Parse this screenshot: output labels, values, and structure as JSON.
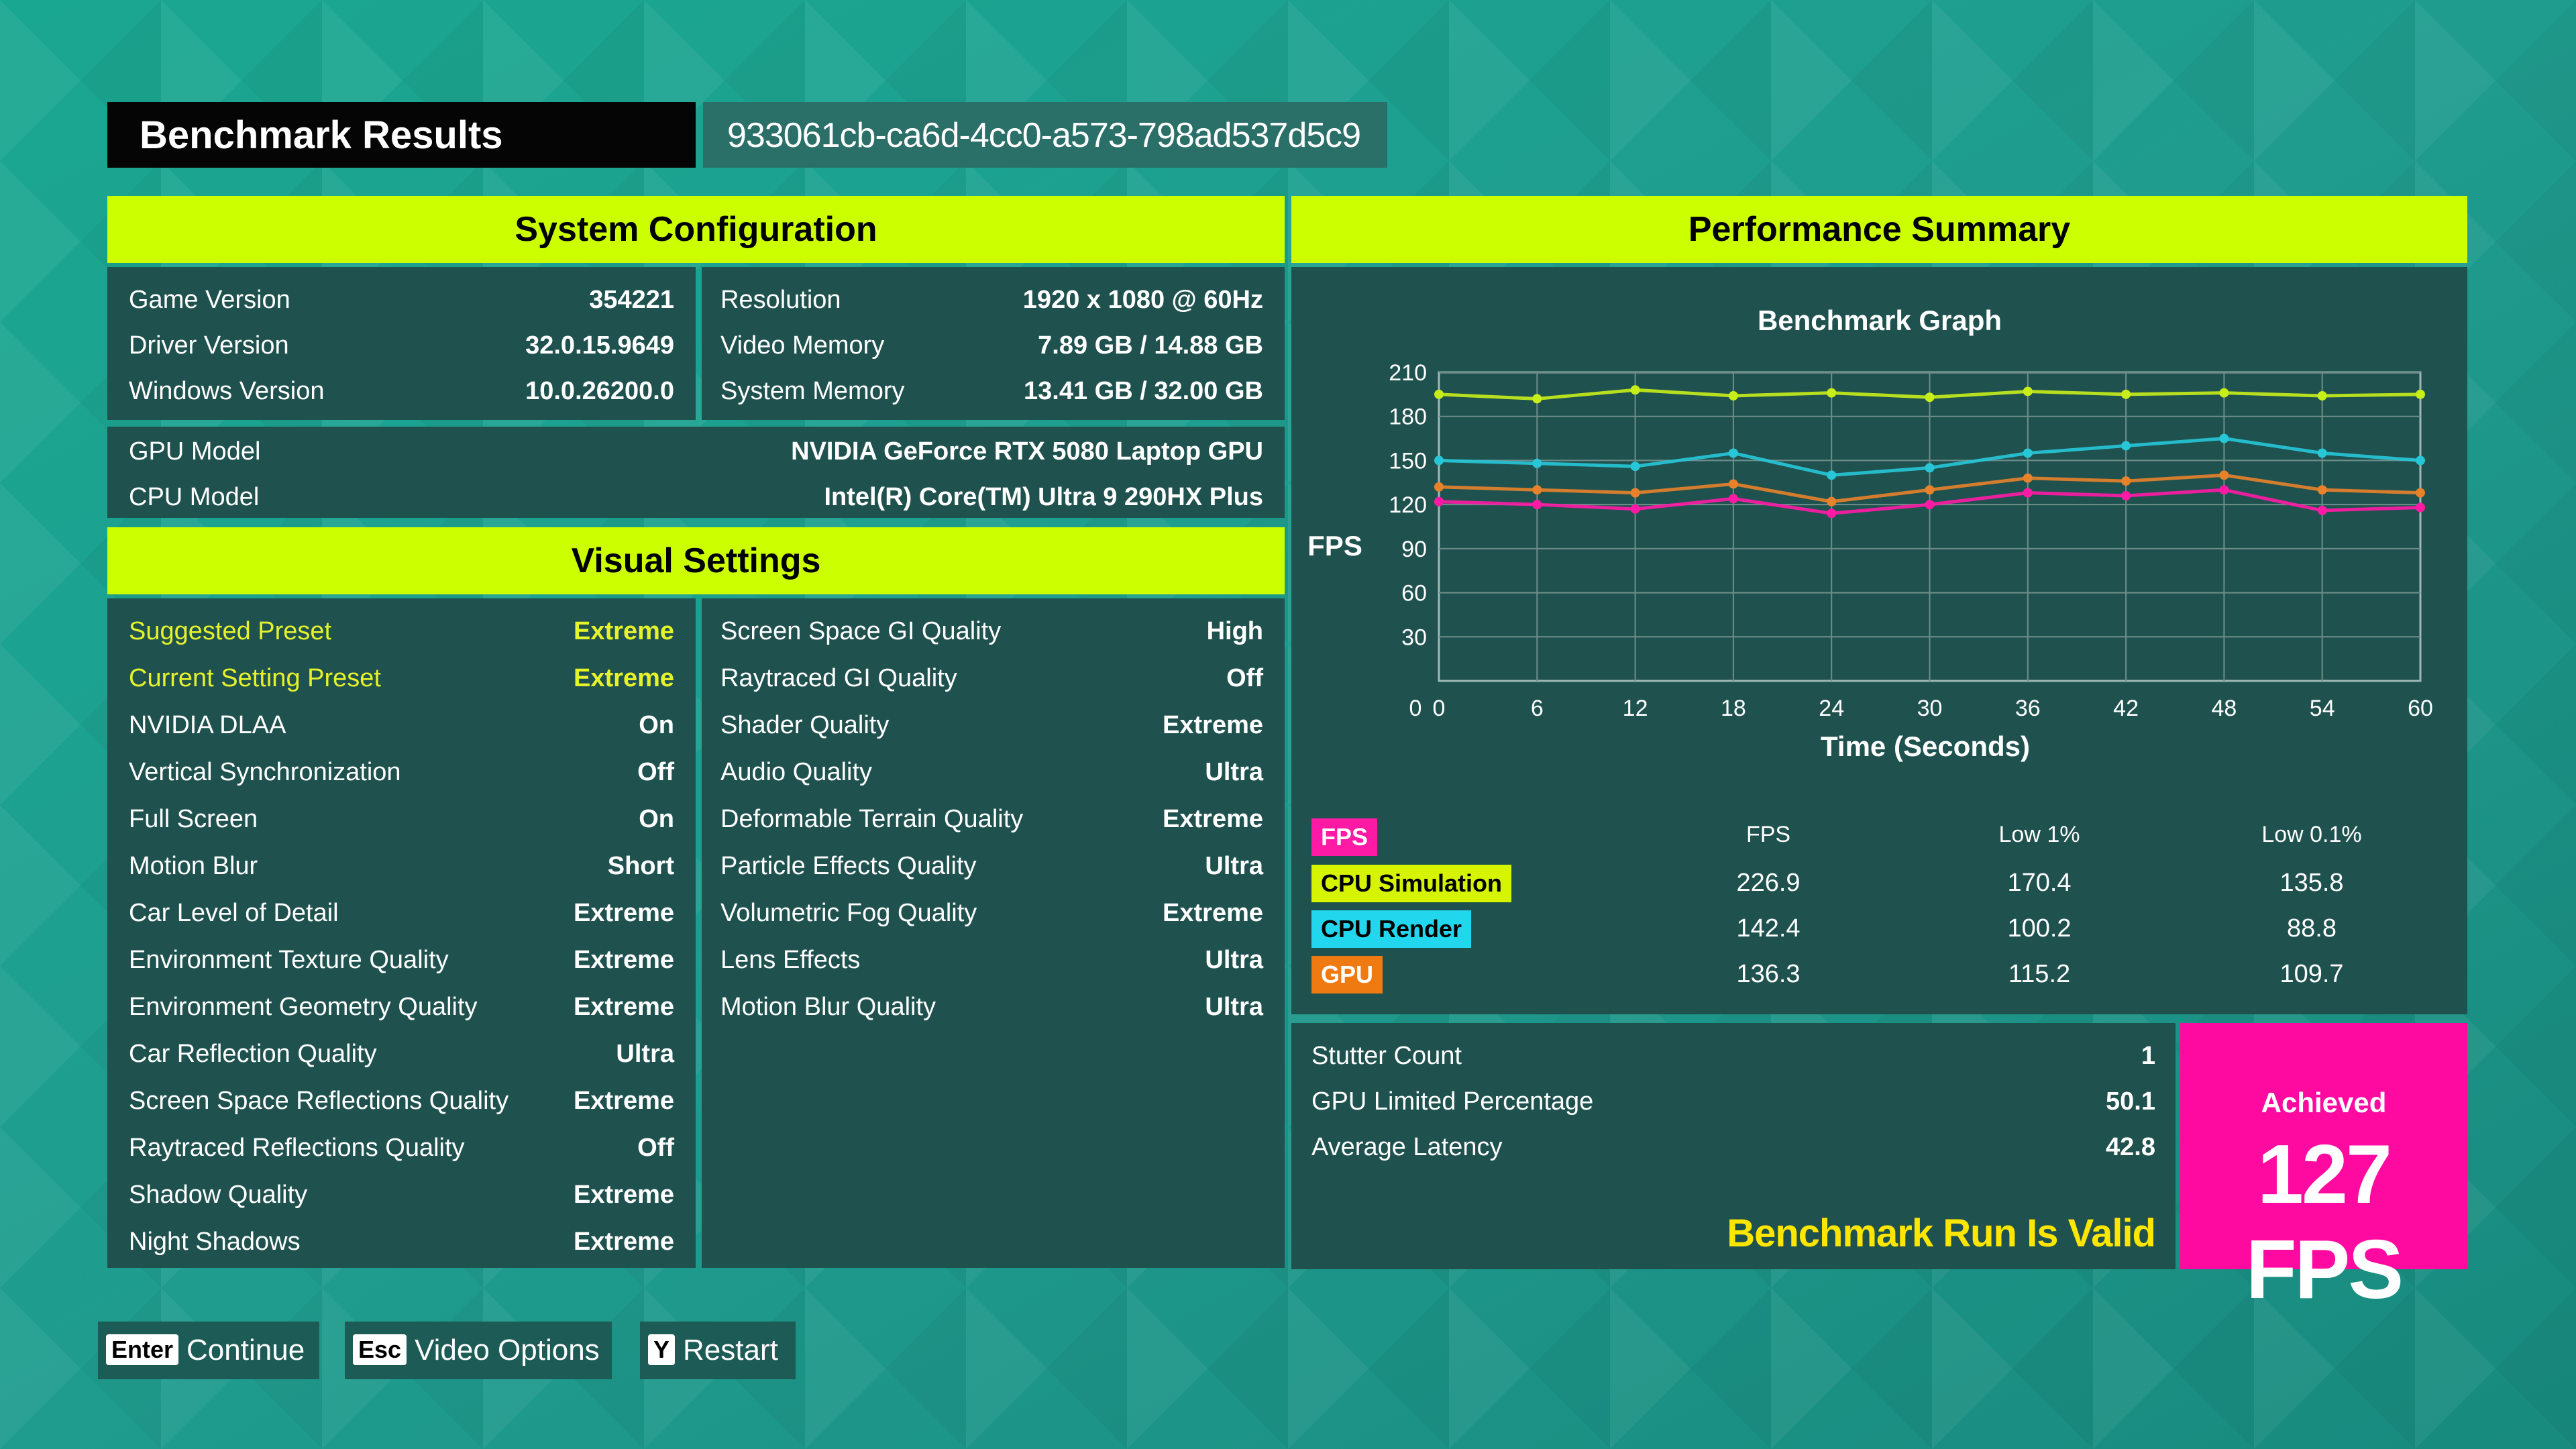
{
  "header": {
    "title": "Benchmark Results",
    "run_id": "933061cb-ca6d-4cc0-a573-798ad537d5c9"
  },
  "system_configuration": {
    "title": "System Configuration",
    "left": [
      {
        "label": "Game Version",
        "value": "354221"
      },
      {
        "label": "Driver Version",
        "value": "32.0.15.9649"
      },
      {
        "label": "Windows Version",
        "value": "10.0.26200.0"
      }
    ],
    "right": [
      {
        "label": "Resolution",
        "value": "1920 x 1080 @ 60Hz"
      },
      {
        "label": "Video Memory",
        "value": "7.89 GB / 14.88 GB"
      },
      {
        "label": "System Memory",
        "value": "13.41 GB / 32.00 GB"
      }
    ],
    "full": [
      {
        "label": "GPU Model",
        "value": "NVIDIA GeForce RTX 5080 Laptop GPU"
      },
      {
        "label": "CPU Model",
        "value": "Intel(R) Core(TM) Ultra 9 290HX Plus"
      }
    ]
  },
  "visual_settings": {
    "title": "Visual Settings",
    "left": [
      {
        "label": "Suggested Preset",
        "value": "Extreme",
        "highlight": true
      },
      {
        "label": "Current Setting Preset",
        "value": "Extreme",
        "highlight": true
      },
      {
        "label": "NVIDIA DLAA",
        "value": "On"
      },
      {
        "label": "Vertical Synchronization",
        "value": "Off"
      },
      {
        "label": "Full Screen",
        "value": "On"
      },
      {
        "label": "Motion Blur",
        "value": "Short"
      },
      {
        "label": "Car Level of Detail",
        "value": "Extreme"
      },
      {
        "label": "Environment Texture Quality",
        "value": "Extreme"
      },
      {
        "label": "Environment Geometry Quality",
        "value": "Extreme"
      },
      {
        "label": "Car Reflection Quality",
        "value": "Ultra"
      },
      {
        "label": "Screen Space Reflections Quality",
        "value": "Extreme"
      },
      {
        "label": "Raytraced Reflections Quality",
        "value": "Off"
      },
      {
        "label": "Shadow Quality",
        "value": "Extreme"
      },
      {
        "label": "Night Shadows",
        "value": "Extreme"
      }
    ],
    "right": [
      {
        "label": "Screen Space GI Quality",
        "value": "High"
      },
      {
        "label": "Raytraced GI Quality",
        "value": "Off"
      },
      {
        "label": "Shader Quality",
        "value": "Extreme"
      },
      {
        "label": "Audio Quality",
        "value": "Ultra"
      },
      {
        "label": "Deformable Terrain Quality",
        "value": "Extreme"
      },
      {
        "label": "Particle Effects Quality",
        "value": "Ultra"
      },
      {
        "label": "Volumetric Fog Quality",
        "value": "Extreme"
      },
      {
        "label": "Lens Effects",
        "value": "Ultra"
      },
      {
        "label": "Motion Blur Quality",
        "value": "Ultra"
      }
    ]
  },
  "performance_summary": {
    "title": "Performance Summary",
    "table": {
      "first_tag": "FPS",
      "headers": [
        "FPS",
        "Low 1%",
        "Low 0.1%"
      ],
      "rows": [
        {
          "name": "CPU Simulation",
          "color": "#d6f400",
          "values": [
            "226.9",
            "170.4",
            "135.8"
          ]
        },
        {
          "name": "CPU Render",
          "color": "#22d6ee",
          "values": [
            "142.4",
            "100.2",
            "88.8"
          ]
        },
        {
          "name": "GPU",
          "color": "#f07a12",
          "values": [
            "136.3",
            "115.2",
            "109.7"
          ]
        }
      ],
      "fps_tag_color": "#ff1aa6"
    },
    "stats": [
      {
        "label": "Stutter Count",
        "value": "1"
      },
      {
        "label": "GPU Limited Percentage",
        "value": "50.1"
      },
      {
        "label": "Average Latency",
        "value": "42.8"
      }
    ],
    "valid_text": "Benchmark Run Is Valid",
    "achieved_label": "Achieved",
    "achieved_value": "127 FPS"
  },
  "chart_data": {
    "type": "scatter",
    "title": "Benchmark Graph",
    "ylabel": "FPS",
    "xlabel": "Time (Seconds)",
    "xlim": [
      0,
      60
    ],
    "ylim": [
      0,
      210
    ],
    "xticks": [
      0,
      6,
      12,
      18,
      24,
      30,
      36,
      42,
      48,
      54,
      60
    ],
    "yticks": [
      30,
      60,
      90,
      120,
      150,
      180,
      210
    ],
    "grid": true,
    "series": [
      {
        "name": "CPU Simulation",
        "color": "#c8ee1a",
        "x": [
          0,
          6,
          12,
          18,
          24,
          30,
          36,
          42,
          48,
          54,
          60
        ],
        "y": [
          195,
          192,
          198,
          194,
          196,
          193,
          197,
          195,
          196,
          194,
          195
        ]
      },
      {
        "name": "CPU Render",
        "color": "#27c7d8",
        "x": [
          0,
          6,
          12,
          18,
          24,
          30,
          36,
          42,
          48,
          54,
          60
        ],
        "y": [
          150,
          148,
          146,
          155,
          140,
          145,
          155,
          160,
          165,
          155,
          150
        ]
      },
      {
        "name": "GPU",
        "color": "#e8822a",
        "x": [
          0,
          6,
          12,
          18,
          24,
          30,
          36,
          42,
          48,
          54,
          60
        ],
        "y": [
          132,
          130,
          128,
          134,
          122,
          130,
          138,
          136,
          140,
          130,
          128
        ]
      },
      {
        "name": "FPS",
        "color": "#ff1aa6",
        "x": [
          0,
          6,
          12,
          18,
          24,
          30,
          36,
          42,
          48,
          54,
          60
        ],
        "y": [
          122,
          120,
          117,
          124,
          114,
          120,
          128,
          126,
          130,
          116,
          118
        ]
      }
    ]
  },
  "footer": {
    "keys": [
      {
        "key": "Enter",
        "label": "Continue"
      },
      {
        "key": "Esc",
        "label": "Video Options"
      },
      {
        "key": "Y",
        "label": "Restart"
      }
    ]
  }
}
